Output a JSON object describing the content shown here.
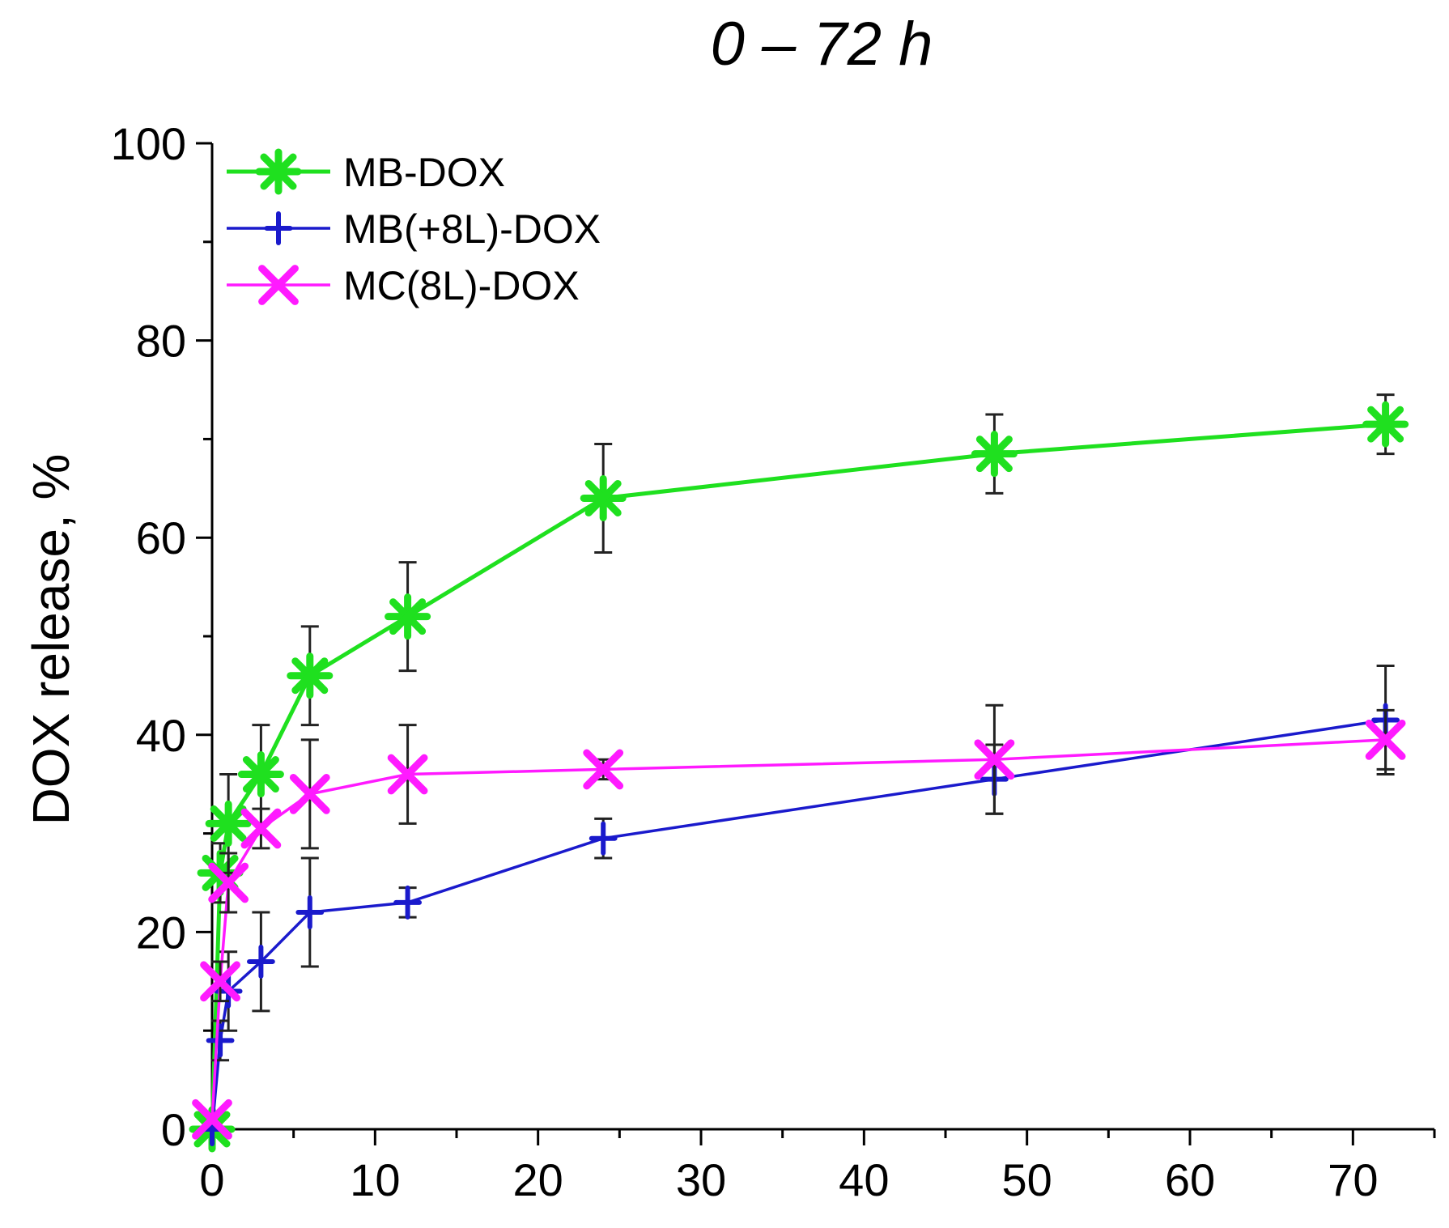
{
  "chart_data": {
    "type": "line",
    "title": "0 – 72 h",
    "xlabel": "",
    "ylabel": "DOX release, %",
    "xlim": [
      0,
      75
    ],
    "ylim": [
      0,
      100
    ],
    "x_ticks": [
      "0",
      "10",
      "20",
      "30",
      "40",
      "50",
      "60",
      "70"
    ],
    "y_ticks": [
      "0",
      "20",
      "40",
      "60",
      "80",
      "100"
    ],
    "legend_position": "top-left",
    "series": [
      {
        "name": "MB-DOX",
        "color": "#1fe01f",
        "marker": "asterisk",
        "x": [
          0,
          0.5,
          1,
          3,
          6,
          12,
          24,
          48,
          72
        ],
        "y": [
          0,
          26,
          31,
          36,
          46,
          52,
          64,
          68.5,
          71.5
        ],
        "err": [
          0,
          3,
          5,
          5,
          5,
          5.5,
          5.5,
          4,
          3
        ]
      },
      {
        "name": "MB(+8L)-DOX",
        "color": "#1a1acc",
        "marker": "plus",
        "x": [
          0,
          0.5,
          1,
          3,
          6,
          12,
          24,
          48,
          72
        ],
        "y": [
          0,
          9,
          14,
          17,
          22,
          23,
          29.5,
          35.5,
          41.5
        ],
        "err": [
          0,
          2,
          4,
          5,
          5.5,
          1.5,
          2,
          3.5,
          5.5
        ]
      },
      {
        "name": "MC(8L)-DOX",
        "color": "#ff1aff",
        "marker": "cross",
        "x": [
          0,
          0.5,
          1,
          3,
          6,
          12,
          24,
          48,
          72
        ],
        "y": [
          1,
          15,
          25,
          30.5,
          34,
          36,
          36.5,
          37.5,
          39.5
        ],
        "err": [
          0,
          2,
          3,
          2,
          5.5,
          5,
          1,
          5.5,
          3
        ]
      }
    ]
  }
}
